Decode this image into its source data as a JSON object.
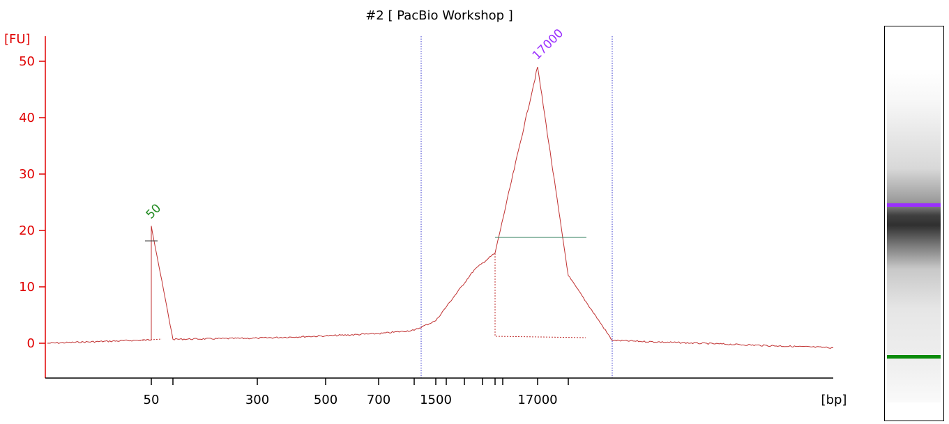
{
  "chart_data": {
    "type": "line",
    "title": "#2  [ PacBio Workshop ]",
    "ylabel": "[FU]",
    "xlabel": "[bp]",
    "ylim": [
      -6,
      54
    ],
    "yticks": [
      0,
      10,
      20,
      30,
      40,
      50
    ],
    "x_tick_labels": [
      "50",
      "300",
      "500",
      "700",
      "1500",
      "17000"
    ],
    "x_scale": "nonlinear (size standard ladder)",
    "series": [
      {
        "points": [
          {
            "x": 35,
            "y": 0.0
          },
          {
            "x": 50,
            "y": 0.6
          },
          {
            "x": 50,
            "y": 20.8
          },
          {
            "x": 60,
            "y": 0.7
          },
          {
            "x": 300,
            "y": 0.9
          },
          {
            "x": 500,
            "y": 1.3
          },
          {
            "x": 700,
            "y": 1.7
          },
          {
            "x": 1000,
            "y": 2.3
          },
          {
            "x": 1500,
            "y": 4.0
          },
          {
            "x": 3000,
            "y": 13.0
          },
          {
            "x": 5000,
            "y": 16.0
          },
          {
            "x": 17000,
            "y": 49.0
          },
          {
            "x": 30000,
            "y": 12.0
          },
          {
            "x": 60000,
            "y": 0.5
          },
          {
            "x": 100000,
            "y": -0.8
          }
        ]
      }
    ],
    "peaks": [
      {
        "label": "50",
        "x": 50,
        "y": 20.8,
        "color": "#228b22"
      },
      {
        "label": "17000",
        "x": 17000,
        "y": 49.0,
        "color": "#9b30ff"
      }
    ],
    "region_lines": "two dotted vertical lines bounding the smear region",
    "colors": {
      "axis": "#e00000",
      "trace": "#c03030",
      "marker_bar": "#2e7d5b",
      "region": "#3333cc",
      "lower_marker": "#228b22",
      "upper_marker": "#9b30ff"
    }
  },
  "gel": {
    "lower_marker_color": "#0a8a0a",
    "upper_marker_color": "#9b30ff"
  }
}
